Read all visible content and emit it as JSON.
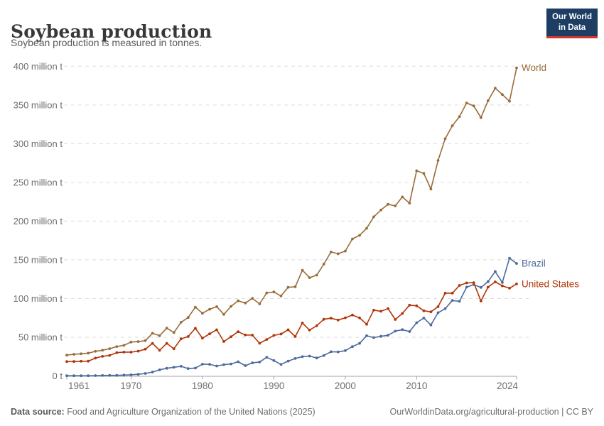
{
  "header": {
    "title": "Soybean production",
    "subtitle": "Soybean production is measured in tonnes.",
    "logo": {
      "line1": "Our World",
      "line2": "in Data",
      "bg": "#1d3d63",
      "accent": "#d8352a"
    }
  },
  "footer": {
    "source_label": "Data source:",
    "source_text": " Food and Agriculture Organization of the United Nations (2025)",
    "right_text": "OurWorldinData.org/agricultural-production | CC BY"
  },
  "chart_data": {
    "type": "line",
    "title": "Soybean production",
    "unit": "million tonnes",
    "xlabel": "",
    "ylabel": "",
    "xlim": [
      1961,
      2024
    ],
    "ylim": [
      0,
      400
    ],
    "grid": "horizontal-dashed",
    "legend": "line-end-labels",
    "x_start": 1961,
    "x": [
      1961,
      1962,
      1963,
      1964,
      1965,
      1966,
      1967,
      1968,
      1969,
      1970,
      1971,
      1972,
      1973,
      1974,
      1975,
      1976,
      1977,
      1978,
      1979,
      1980,
      1981,
      1982,
      1983,
      1984,
      1985,
      1986,
      1987,
      1988,
      1989,
      1990,
      1991,
      1992,
      1993,
      1994,
      1995,
      1996,
      1997,
      1998,
      1999,
      2000,
      2001,
      2002,
      2003,
      2004,
      2005,
      2006,
      2007,
      2008,
      2009,
      2010,
      2011,
      2012,
      2013,
      2014,
      2015,
      2016,
      2017,
      2018,
      2019,
      2020,
      2021,
      2022,
      2023,
      2024
    ],
    "series": [
      {
        "name": "World",
        "color": "#996d39",
        "values": [
          26.9,
          28.0,
          28.6,
          29.4,
          31.8,
          33.2,
          35.2,
          38.0,
          39.5,
          43.7,
          44.4,
          45.6,
          55.1,
          52.0,
          61.8,
          56.0,
          69.3,
          75.5,
          88.9,
          81.0,
          86.1,
          89.5,
          79.5,
          89.9,
          97.0,
          94.2,
          100.2,
          93.1,
          107.3,
          108.5,
          103.3,
          114.5,
          115.2,
          136.5,
          126.9,
          130.2,
          144.4,
          160.1,
          157.8,
          161.3,
          177.0,
          181.6,
          190.7,
          205.5,
          214.3,
          221.7,
          219.6,
          231.2,
          223.2,
          265.0,
          261.6,
          241.4,
          278.3,
          306.4,
          323.2,
          334.9,
          352.6,
          348.7,
          333.7,
          355.4,
          371.7,
          363.5,
          354.8,
          397.9
        ]
      },
      {
        "name": "Brazil",
        "color": "#4c6a9c",
        "values": [
          0.3,
          0.3,
          0.3,
          0.3,
          0.5,
          0.6,
          0.7,
          0.7,
          1.1,
          1.5,
          2.1,
          3.2,
          5.0,
          7.9,
          9.9,
          11.2,
          12.5,
          9.5,
          10.2,
          15.2,
          15.0,
          12.8,
          14.6,
          15.5,
          18.3,
          13.3,
          17.0,
          18.0,
          24.0,
          19.9,
          14.9,
          19.2,
          22.6,
          24.9,
          25.7,
          23.2,
          26.4,
          31.3,
          31.0,
          32.7,
          37.9,
          42.1,
          51.9,
          49.5,
          51.2,
          52.5,
          57.9,
          59.8,
          57.3,
          68.8,
          74.8,
          65.8,
          81.7,
          86.8,
          97.5,
          96.4,
          114.7,
          117.9,
          114.3,
          121.8,
          134.9,
          120.7,
          152.1,
          145.3
        ]
      },
      {
        "name": "United States",
        "color": "#b13507",
        "values": [
          18.5,
          18.6,
          19.0,
          19.1,
          23.0,
          25.3,
          26.6,
          30.1,
          30.8,
          30.7,
          32.0,
          34.6,
          42.1,
          33.1,
          42.1,
          35.1,
          48.0,
          50.9,
          61.5,
          48.8,
          54.4,
          59.6,
          44.5,
          50.6,
          57.1,
          52.9,
          52.7,
          42.2,
          47.1,
          52.4,
          54.1,
          59.6,
          50.9,
          68.4,
          59.2,
          64.8,
          73.2,
          74.6,
          72.2,
          75.1,
          78.7,
          75.0,
          66.8,
          85.0,
          83.5,
          87.0,
          72.9,
          80.7,
          91.4,
          90.6,
          84.2,
          82.8,
          89.5,
          106.9,
          106.9,
          116.9,
          120.1,
          120.5,
          96.7,
          114.7,
          121.5,
          116.4,
          113.3,
          118.8
        ]
      }
    ],
    "y_axis": {
      "ticks": [
        {
          "v": 0,
          "label": "0 t"
        },
        {
          "v": 50,
          "label": "50 million t"
        },
        {
          "v": 100,
          "label": "100 million t"
        },
        {
          "v": 150,
          "label": "150 million t"
        },
        {
          "v": 200,
          "label": "200 million t"
        },
        {
          "v": 250,
          "label": "250 million t"
        },
        {
          "v": 300,
          "label": "300 million t"
        },
        {
          "v": 350,
          "label": "350 million t"
        },
        {
          "v": 400,
          "label": "400 million t"
        }
      ]
    },
    "x_axis": {
      "ticks": [
        {
          "year": 1961,
          "label": "1961",
          "align": "start"
        },
        {
          "year": 1970,
          "label": "1970",
          "align": "middle"
        },
        {
          "year": 1980,
          "label": "1980",
          "align": "middle"
        },
        {
          "year": 1990,
          "label": "1990",
          "align": "middle"
        },
        {
          "year": 2000,
          "label": "2000",
          "align": "middle"
        },
        {
          "year": 2010,
          "label": "2010",
          "align": "middle"
        },
        {
          "year": 2024,
          "label": "2024",
          "align": "end"
        }
      ]
    },
    "colors": {
      "gridline": "#dddddd",
      "axis": "#a3a3a3",
      "tick_label": "#6f6f6f"
    }
  }
}
